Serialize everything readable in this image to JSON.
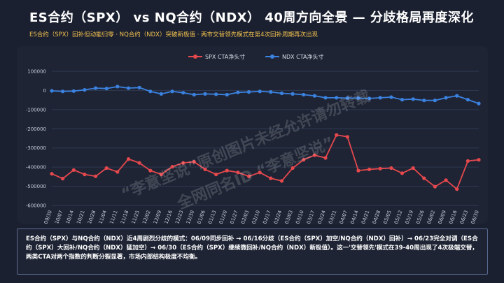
{
  "header": {
    "title": "ES合约（SPX） vs NQ合约（NDX） 40周方向全景 — 分歧格局再度深化",
    "subtitle": "ES合约（SPX）回补但动能归零 · NQ合约（NDX）突破新极值 · 两市交替领先模式在第4次回补周期再次出现"
  },
  "watermark": {
    "line1": "“李意坚说”原创图片未经允许请勿转载",
    "line2": "全网同名ID “李意坚说”"
  },
  "note": {
    "text": "ES合约（SPX）与NQ合约（NDX）近4周剧烈分歧的模式：06/09同步回补 → 06/16分歧（ES合约（SPX）加空/NQ合约（NDX）回补）→ 06/23完全对调（ES合约（SPX）大回补/NQ合约（NDX）猛加空）→ 06/30（ES合约（SPX）继续微回补/NQ合约（NDX）新极值）。这一'交替领先'模式在39-40周出现了4次极端交替，两类CTA对两个指数的判断分裂显著，市场内部结构极度不均衡。"
  },
  "chart_data": {
    "type": "line",
    "ylim": [
      -600000,
      100000
    ],
    "yticks": [
      100000,
      0,
      -100000,
      -200000,
      -300000,
      -400000,
      -500000,
      -600000
    ],
    "x": [
      "09/30",
      "10/07",
      "10/14",
      "10/21",
      "10/28",
      "11/04",
      "11/11",
      "11/18",
      "11/25",
      "12/02",
      "12/09",
      "12/16",
      "12/23",
      "12/30",
      "01/06",
      "01/13",
      "01/20",
      "01/27",
      "02/03",
      "02/10",
      "02/17",
      "02/24",
      "03/03",
      "03/10",
      "03/17",
      "03/24",
      "03/31",
      "04/07",
      "04/14",
      "04/21",
      "04/28",
      "05/05",
      "05/12",
      "05/19",
      "05/26",
      "06/02",
      "06/09",
      "06/16",
      "06/23",
      "06/30"
    ],
    "x_tick_labels": [
      "09/30",
      "10/07",
      "10/14",
      "10/21",
      "10/28",
      "11/04",
      "11/11",
      "11/18",
      "11/25",
      "12/02",
      "12/09",
      "12/16",
      "12/23",
      "12/30",
      "01/06",
      "01/13",
      "01/20",
      "01/27",
      "02/03",
      "02/10",
      "02/17",
      "02/24",
      "03/03",
      "03/10",
      "03/17",
      "03/24",
      "03/31",
      "04/07",
      "04/14",
      "04/21",
      "04/28",
      "05/05",
      "05/12",
      "05/19",
      "05/26",
      "06/02",
      "06/09",
      "06/16",
      "06/23",
      "06/30"
    ],
    "series": [
      {
        "name": "SPX CTA净头寸",
        "color": "#e5484d",
        "values": [
          -435000,
          -460000,
          -415000,
          -438000,
          -448000,
          -405000,
          -425000,
          -358000,
          -378000,
          -418000,
          -438000,
          -398000,
          -378000,
          -372000,
          -412000,
          -438000,
          -418000,
          -428000,
          -448000,
          -428000,
          -458000,
          -472000,
          -405000,
          -362000,
          -338000,
          -352000,
          -232000,
          -242000,
          -418000,
          -412000,
          -408000,
          -405000,
          -432000,
          -405000,
          -458000,
          -502000,
          -468000,
          -515000,
          -368000,
          -362000
        ]
      },
      {
        "name": "NDX CTA净头寸",
        "color": "#3b82e0",
        "values": [
          -2000,
          -5000,
          -3000,
          3000,
          12000,
          10000,
          20000,
          12000,
          15000,
          -5000,
          -18000,
          -5000,
          -12000,
          -22000,
          -18000,
          -20000,
          -22000,
          -10000,
          -8000,
          -5000,
          -8000,
          -15000,
          -18000,
          -22000,
          -28000,
          -38000,
          -38000,
          -40000,
          -40000,
          -42000,
          -38000,
          -35000,
          -48000,
          -45000,
          -52000,
          -52000,
          -38000,
          -28000,
          -48000,
          -68000
        ]
      }
    ]
  }
}
